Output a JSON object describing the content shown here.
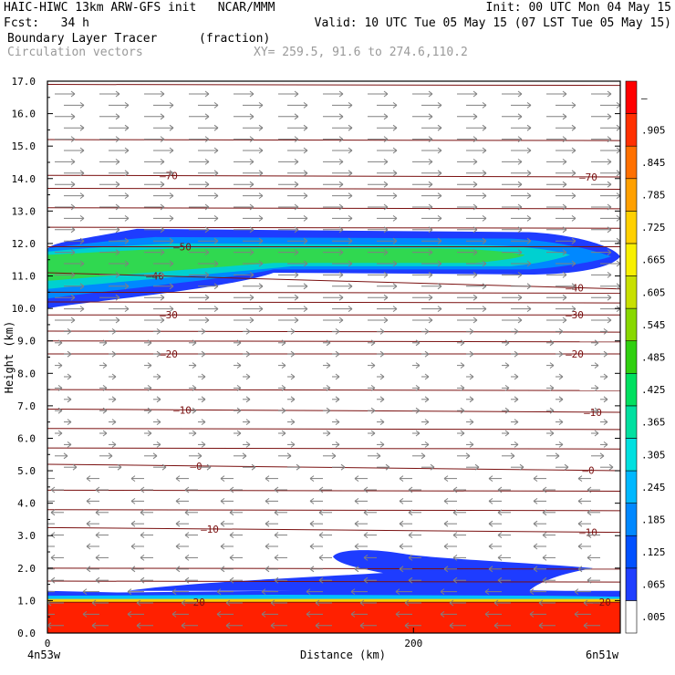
{
  "header": {
    "line1_left": "HAIC-HIWC 13km ARW-GFS init   NCAR/MMM",
    "line1_right": "Init: 00 UTC Mon 04 May 15",
    "line2_left": "Fcst:   34 h",
    "line2_right": "Valid: 10 UTC Tue 05 May 15 (07 LST Tue 05 May 15)",
    "field_name": "Boundary Layer Tracer",
    "field_units": "(fraction)",
    "vector_name": "Circulation vectors",
    "xy_range": "XY= 259.5, 91.6 to 274.6,110.2"
  },
  "chart_data": {
    "type": "heatmap",
    "xlabel": "Distance (km)",
    "ylabel": "Height (km)",
    "xlim": [
      0,
      313
    ],
    "ylim": [
      0,
      17
    ],
    "x_ticks": [
      {
        "value": 0,
        "label": "0"
      },
      {
        "value": 200,
        "label": "200"
      }
    ],
    "x_end_labels": {
      "left": "4n53w",
      "right": "6n51w"
    },
    "y_ticks": [
      "0.0",
      "1.0",
      "2.0",
      "3.0",
      "4.0",
      "5.0",
      "6.0",
      "7.0",
      "8.0",
      "9.0",
      "10.0",
      "11.0",
      "12.0",
      "13.0",
      "14.0",
      "15.0",
      "16.0",
      "17.0"
    ],
    "colorbar": {
      "labels": [
        ".005",
        ".065",
        ".125",
        ".185",
        ".245",
        ".305",
        ".365",
        ".425",
        ".485",
        ".545",
        ".605",
        ".665",
        ".725",
        ".785",
        ".845",
        ".905",
        "–"
      ],
      "colors": [
        "#ffffff",
        "#1f3fff",
        "#0050ff",
        "#0088ff",
        "#00b8ff",
        "#00e0e0",
        "#00e0a0",
        "#00e060",
        "#30d010",
        "#88d800",
        "#c8e000",
        "#f8f000",
        "#ffd000",
        "#ffa000",
        "#ff7000",
        "#ff3000",
        "#ff0000"
      ]
    },
    "isotherms": [
      {
        "label": "70",
        "yl": 14.1,
        "yr": 14.05,
        "lx": 185,
        "rx": 645
      },
      {
        "label": "50",
        "yl": 11.9,
        "yr": 11.9,
        "lx": 200,
        "rx": null
      },
      {
        "label": "40",
        "yl": 11.1,
        "yr": 10.6,
        "lx": 170,
        "rx": 630
      },
      {
        "label": "30",
        "yl": 9.8,
        "yr": 9.8,
        "lx": 185,
        "rx": 630
      },
      {
        "label": "20",
        "yl": 8.6,
        "yr": 8.6,
        "lx": 185,
        "rx": 630
      },
      {
        "label": "10",
        "yl": 6.9,
        "yr": 6.8,
        "lx": 200,
        "rx": 650
      },
      {
        "label": "0",
        "yl": 5.2,
        "yr": 5.0,
        "lx": 215,
        "rx": 645
      },
      {
        "label": "10",
        "yl": 3.25,
        "yr": 3.1,
        "lx": 230,
        "rx": 645
      },
      {
        "label": "20",
        "yl": 0.95,
        "yr": 0.95,
        "lx": 215,
        "rx": 660
      }
    ],
    "plain_isotherm_heights": [
      16.9,
      15.2,
      13.7,
      13.1,
      12.5,
      10.5,
      10.2,
      9.3,
      9.0,
      7.5,
      6.3,
      5.7,
      4.4,
      3.8,
      2.0,
      1.6
    ]
  }
}
